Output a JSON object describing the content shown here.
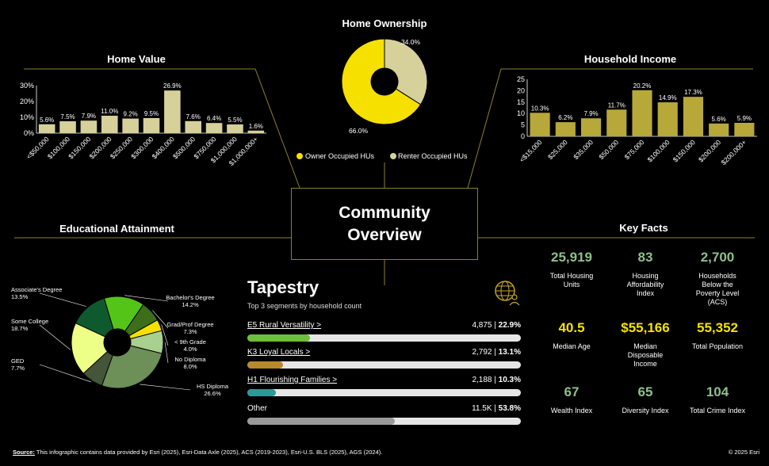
{
  "home_value": {
    "title": "Home Value",
    "chart_data": {
      "type": "bar",
      "categories": [
        "<$50,000",
        "$100,000",
        "$150,000",
        "$200,000",
        "$250,000",
        "$300,000",
        "$400,000",
        "$500,000",
        "$750,000",
        "$1,000,000",
        "$1,000,000+"
      ],
      "values": [
        5.6,
        7.5,
        7.9,
        11.0,
        9.2,
        9.5,
        26.9,
        7.6,
        6.4,
        5.5,
        1.6
      ],
      "labels": [
        "5.6%",
        "7.5%",
        "7.9%",
        "11.0%",
        "9.2%",
        "9.5%",
        "26.9%",
        "7.6%",
        "6.4%",
        "5.5%",
        "1.6%"
      ],
      "yticks": [
        "0%",
        "10%",
        "20%",
        "30%"
      ],
      "ylim": [
        0,
        30
      ],
      "color": "#d6d09a"
    }
  },
  "home_ownership": {
    "title": "Home Ownership",
    "chart_data": {
      "type": "pie",
      "labels": [
        "Owner Occupied HUs",
        "Renter Occupied HUs"
      ],
      "values": [
        66.0,
        34.0
      ],
      "value_labels": [
        "66.0%",
        "34.0%"
      ],
      "colors": [
        "#f5e000",
        "#d6d09a"
      ]
    }
  },
  "household_income": {
    "title": "Household Income",
    "chart_data": {
      "type": "bar",
      "categories": [
        "<$15,000",
        "$25,000",
        "$35,000",
        "$50,000",
        "$75,000",
        "$100,000",
        "$150,000",
        "$200,000",
        "$200,000+"
      ],
      "values": [
        10.3,
        6.2,
        7.9,
        11.7,
        20.2,
        14.9,
        17.3,
        5.6,
        5.9
      ],
      "labels": [
        "10.3%",
        "6.2%",
        "7.9%",
        "11.7%",
        "20.2%",
        "14.9%",
        "17.3%",
        "5.6%",
        "5.9%"
      ],
      "yticks": [
        "0",
        "5",
        "10",
        "15",
        "20",
        "25"
      ],
      "ylim": [
        0,
        25
      ],
      "color": "#b7a83a"
    }
  },
  "education": {
    "title": "Educational Attainment",
    "chart_data": {
      "type": "pie",
      "labels": [
        "HS Diploma",
        "GED",
        "Some College",
        "Associate's Degree",
        "Bachelor's Degree",
        "Grad/Prof Degree",
        "< 9th Grade",
        "No Diploma"
      ],
      "values": [
        26.6,
        7.7,
        18.7,
        13.5,
        14.2,
        7.3,
        4.0,
        8.0
      ],
      "value_labels": [
        "26.6%",
        "7.7%",
        "18.7%",
        "13.5%",
        "14.2%",
        "7.3%",
        "4.0%",
        "8.0%"
      ],
      "colors": [
        "#6d8f58",
        "#44553a",
        "#eeff88",
        "#0e5a2e",
        "#55c418",
        "#3c6e1c",
        "#f5e000",
        "#a9d08e"
      ]
    }
  },
  "center": {
    "line1": "Community",
    "line2": "Overview"
  },
  "tapestry": {
    "title": "Tapestry",
    "subtitle": "Top 3 segments by household count",
    "icon": "tapestry-globe-person-icon",
    "rows": [
      {
        "name": "E5 Rural Versatility >",
        "count": "4,875",
        "pct": "22.9%",
        "value": 22.9,
        "color": "#6cc03c"
      },
      {
        "name": "K3 Loyal Locals >",
        "count": "2,792",
        "pct": "13.1%",
        "value": 13.1,
        "color": "#b8892a"
      },
      {
        "name": "H1 Flourishing Families >",
        "count": "2,188",
        "pct": "10.3%",
        "value": 10.3,
        "color": "#2a9a96"
      },
      {
        "name": "Other",
        "count": "11.5K",
        "pct": "53.8%",
        "value": 53.8,
        "color": "#9a9a9a"
      }
    ],
    "separator": " | "
  },
  "key_facts": {
    "title": "Key Facts",
    "items": [
      {
        "value": "25,919",
        "label": "Total Housing Units",
        "color": "#8fbf8a"
      },
      {
        "value": "83",
        "label": "Housing Affordability Index",
        "color": "#8fbf8a"
      },
      {
        "value": "2,700",
        "label": "Households Below the Poverty Level (ACS)",
        "color": "#8fbf8a"
      },
      {
        "value": "40.5",
        "label": "Median Age",
        "color": "#f5e000"
      },
      {
        "value": "$55,166",
        "label": "Median Disposable Income",
        "color": "#f5e000"
      },
      {
        "value": "55,352",
        "label": "Total Population",
        "color": "#f5e000"
      },
      {
        "value": "67",
        "label": "Wealth Index",
        "color": "#8fbf8a"
      },
      {
        "value": "65",
        "label": "Diversity Index",
        "color": "#8fbf8a"
      },
      {
        "value": "104",
        "label": "Total Crime Index",
        "color": "#8fbf8a"
      }
    ]
  },
  "footer": {
    "source_label": "Source:",
    "source_text": " This infographic contains data provided by Esri (2025), Esri-Data Axle (2025), ACS (2019-2023), Esri-U.S. BLS (2025), AGS (2024).",
    "copyright": "© 2025 Esri"
  }
}
